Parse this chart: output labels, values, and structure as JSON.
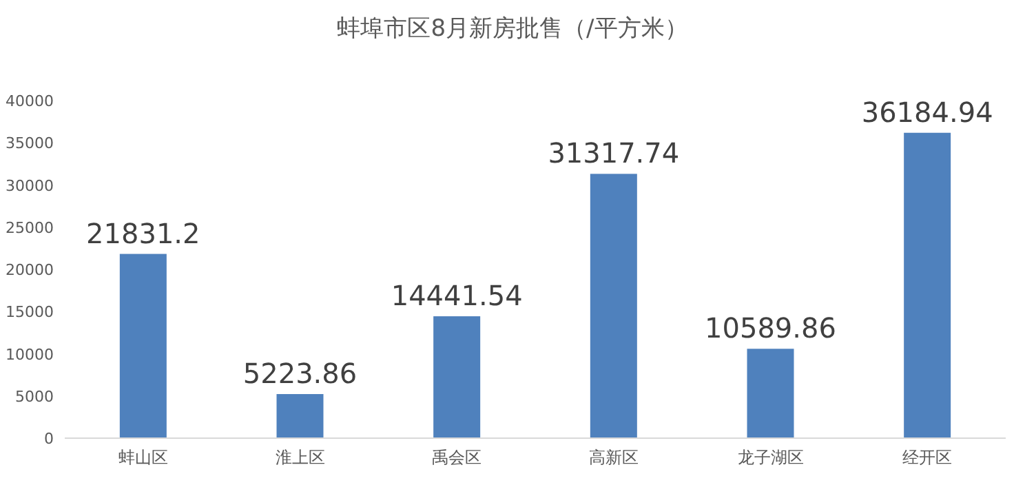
{
  "chart_data": {
    "type": "bar",
    "title": "蚌埠市区8月新房批售（/平方米）",
    "categories": [
      "蚌山区",
      "淮上区",
      "禹会区",
      "高新区",
      "龙子湖区",
      "经开区"
    ],
    "values": [
      21831.2,
      5223.86,
      14441.54,
      31317.74,
      10589.86,
      36184.94
    ],
    "color": "#4f81bd",
    "ylim": [
      0,
      40000
    ],
    "yticks": [
      0,
      5000,
      10000,
      15000,
      20000,
      25000,
      30000,
      35000,
      40000
    ],
    "grid": false,
    "data_labels": true
  }
}
